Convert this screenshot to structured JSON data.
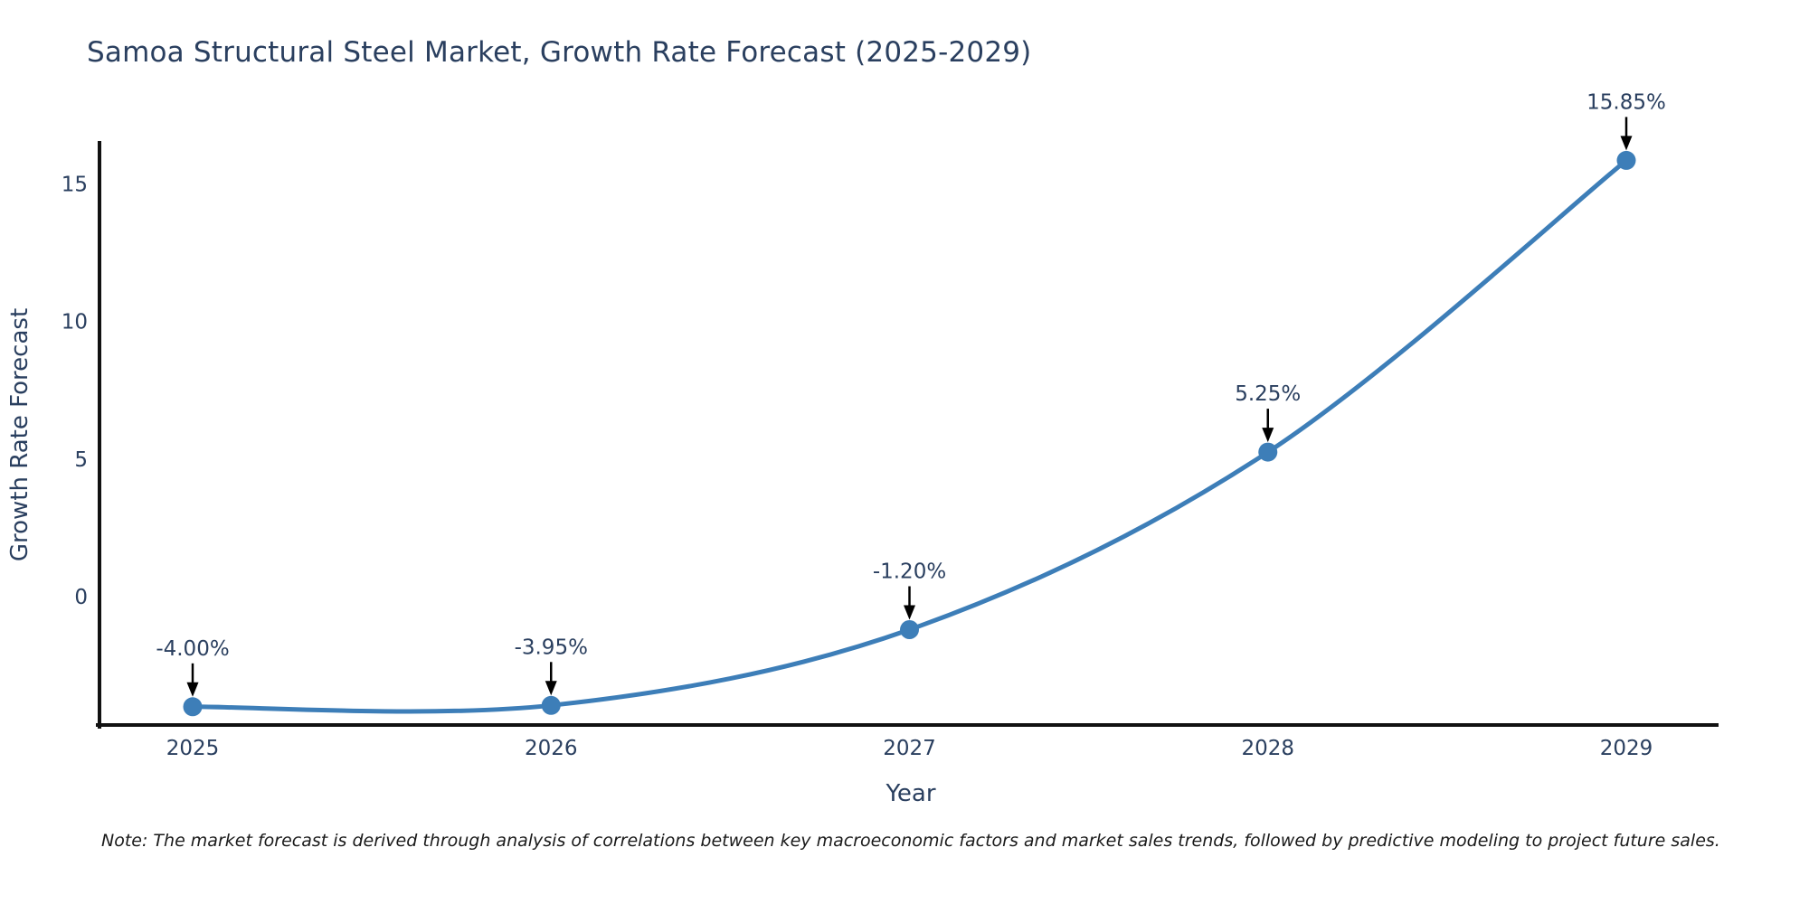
{
  "chart_data": {
    "type": "line",
    "title": "Samoa Structural Steel Market, Growth Rate Forecast (2025-2029)",
    "x": [
      "2025",
      "2026",
      "2027",
      "2028",
      "2029"
    ],
    "y": [
      -4.0,
      -3.95,
      -1.2,
      5.25,
      15.85
    ],
    "point_labels": [
      "-4.00%",
      "-3.95%",
      "-1.20%",
      "5.25%",
      "15.85%"
    ],
    "xlabel": "Year",
    "ylabel": "Growth Rate Forecast",
    "yticks": [
      0,
      5,
      10,
      15
    ],
    "ylim": [
      -4.65,
      16.45
    ],
    "line_shape": "spline",
    "grid": false,
    "legend": "none",
    "annotation_style": "down-arrow-to-point",
    "note": "Note: The market forecast is derived through analysis of correlations between key macroeconomic factors and market sales trends, followed by predictive modeling to project future sales.",
    "colors": {
      "line": "#3d7eb8",
      "marker": "#3d7eb8",
      "axis_line": "#111111",
      "text": "#2a3f5f",
      "arrow": "#000000",
      "note_text": "#1a1a1a",
      "background": "#ffffff"
    }
  }
}
